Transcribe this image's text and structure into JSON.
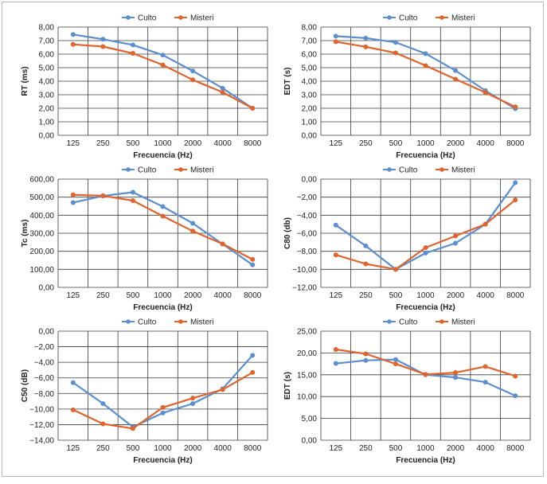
{
  "series_colors": {
    "Culto": "#5b8fcf",
    "Misteri": "#e2632b"
  },
  "x_categories": [
    "125",
    "250",
    "500",
    "1000",
    "2000",
    "4000",
    "8000"
  ],
  "chart_data": [
    {
      "type": "line",
      "xlabel": "Frecuencia (Hz)",
      "ylabel": "RT (ms)",
      "ylim": [
        0,
        8
      ],
      "yticks": [
        "0,00",
        "1,00",
        "2,00",
        "3,00",
        "4,00",
        "5,00",
        "6,00",
        "7,00",
        "8,00"
      ],
      "legend": "top-center",
      "grid": true,
      "categories": [
        "125",
        "250",
        "500",
        "1000",
        "2000",
        "4000",
        "8000"
      ],
      "series": [
        {
          "name": "Culto",
          "values": [
            7.45,
            7.1,
            6.68,
            5.93,
            4.76,
            3.48,
            2.0
          ]
        },
        {
          "name": "Misteri",
          "values": [
            6.72,
            6.56,
            6.06,
            5.2,
            4.1,
            3.18,
            2.0
          ]
        }
      ]
    },
    {
      "type": "line",
      "xlabel": "Frecuencia (Hz)",
      "ylabel": "EDT (s)",
      "ylim": [
        0,
        8
      ],
      "yticks": [
        "0,00",
        "1,00",
        "2,00",
        "3,00",
        "4,00",
        "5,00",
        "6,00",
        "7,00",
        "8,00"
      ],
      "legend": "top-right",
      "grid": true,
      "categories": [
        "125",
        "250",
        "500",
        "1000",
        "2000",
        "4000",
        "8000"
      ],
      "series": [
        {
          "name": "Culto",
          "values": [
            7.33,
            7.18,
            6.87,
            6.04,
            4.79,
            3.3,
            1.97
          ]
        },
        {
          "name": "Misteri",
          "values": [
            6.92,
            6.54,
            6.09,
            5.15,
            4.15,
            3.16,
            2.1
          ]
        }
      ]
    },
    {
      "type": "line",
      "xlabel": "Frecuencia (Hz)",
      "ylabel": "Tc (ms)",
      "ylim": [
        0,
        600
      ],
      "yticks": [
        "0,00",
        "100,00",
        "200,00",
        "300,00",
        "400,00",
        "500,00",
        "600,00"
      ],
      "legend": "top-center",
      "grid": true,
      "categories": [
        "125",
        "250",
        "500",
        "1000",
        "2000",
        "4000",
        "8000"
      ],
      "series": [
        {
          "name": "Culto",
          "values": [
            470,
            507,
            527,
            448,
            355,
            240,
            125
          ]
        },
        {
          "name": "Misteri",
          "values": [
            513,
            508,
            481,
            395,
            312,
            241,
            155
          ]
        }
      ]
    },
    {
      "type": "line",
      "xlabel": "Frecuencia (Hz)",
      "ylabel": "C80 (db)",
      "ylim": [
        -12,
        0
      ],
      "yticks": [
        "−12,00",
        "−10,00",
        "−8,00",
        "−6,00",
        "−4,00",
        "−2,00",
        "0,00"
      ],
      "legend": "top-right",
      "grid": true,
      "categories": [
        "125",
        "250",
        "500",
        "1000",
        "2000",
        "4000",
        "8000"
      ],
      "series": [
        {
          "name": "Culto",
          "values": [
            -5.1,
            -7.4,
            -10.0,
            -8.2,
            -7.1,
            -5.0,
            -0.4
          ]
        },
        {
          "name": "Misteri",
          "values": [
            -8.4,
            -9.4,
            -10.0,
            -7.6,
            -6.3,
            -5.0,
            -2.3
          ]
        }
      ]
    },
    {
      "type": "line",
      "xlabel": "Frecuencia (Hz)",
      "ylabel": "C50 (dB)",
      "ylim": [
        -14,
        0
      ],
      "yticks": [
        "−14,00",
        "−12,00",
        "−10,00",
        "−8,00",
        "−6,00",
        "−4,00",
        "−2,00",
        "0,00"
      ],
      "legend": "top-center",
      "grid": true,
      "categories": [
        "125",
        "250",
        "500",
        "1000",
        "2000",
        "4000",
        "8000"
      ],
      "series": [
        {
          "name": "Culto",
          "values": [
            -6.6,
            -9.3,
            -12.3,
            -10.5,
            -9.3,
            -7.4,
            -3.1
          ]
        },
        {
          "name": "Misteri",
          "values": [
            -10.1,
            -11.9,
            -12.5,
            -9.8,
            -8.6,
            -7.5,
            -5.3
          ]
        }
      ]
    },
    {
      "type": "line",
      "xlabel": "Frecuencia (Hz)",
      "ylabel": "EDT (s)",
      "ylim": [
        0,
        25
      ],
      "yticks": [
        "0,00",
        "5,00",
        "10,00",
        "15,00",
        "20,00",
        "25,00"
      ],
      "legend": "top-right",
      "grid": true,
      "categories": [
        "125",
        "250",
        "500",
        "1000",
        "2000",
        "4000",
        "8000"
      ],
      "series": [
        {
          "name": "Culto",
          "values": [
            17.6,
            18.3,
            18.5,
            15.0,
            14.4,
            13.3,
            10.2
          ]
        },
        {
          "name": "Misteri",
          "values": [
            20.8,
            19.8,
            17.5,
            15.1,
            15.5,
            16.9,
            14.7
          ]
        }
      ]
    }
  ]
}
